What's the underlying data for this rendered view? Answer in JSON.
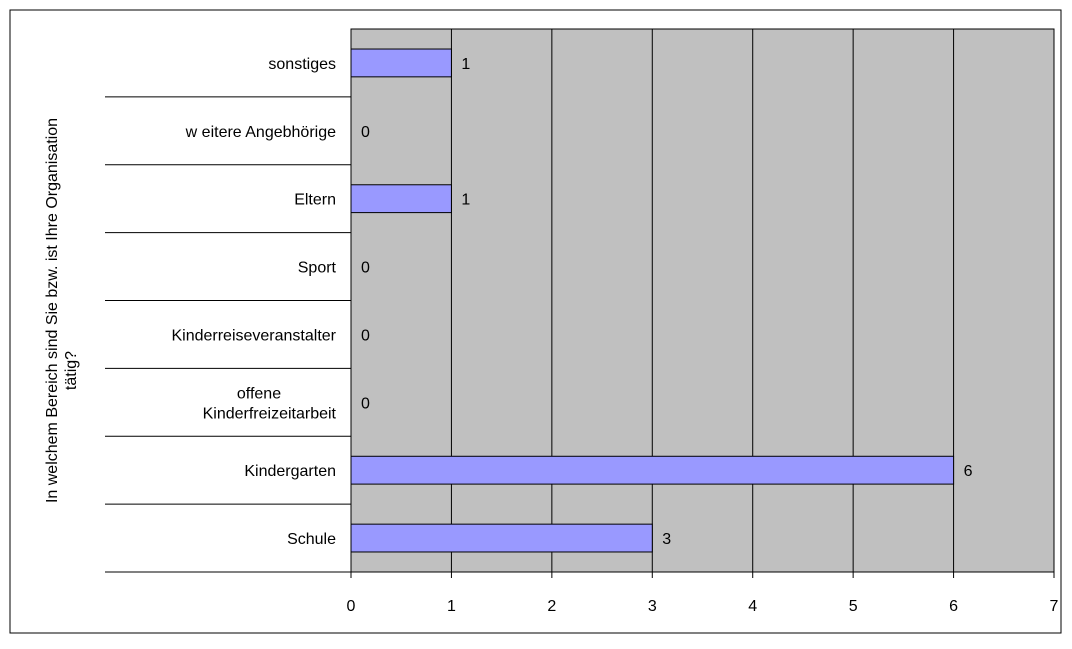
{
  "chart_data": {
    "type": "bar",
    "orientation": "horizontal",
    "ylabel": "In welchem Bereich sind Sie bzw. ist Ihre Organisation tätig?",
    "ylabel_lines": [
      "In welchem Bereich sind Sie bzw. ist Ihre Organisation",
      "tätig?"
    ],
    "categories": [
      "Schule",
      "Kindergarten",
      "offene Kinderfreizeitarbeit",
      "Kinderreiseveranstalter",
      "Sport",
      "Eltern",
      "w eitere Angebhörige",
      "sonstiges"
    ],
    "category_lines": [
      [
        "Schule"
      ],
      [
        "Kindergarten"
      ],
      [
        "offene",
        "Kinderfreizeitarbeit"
      ],
      [
        "Kinderreiseveranstalter"
      ],
      [
        "Sport"
      ],
      [
        "Eltern"
      ],
      [
        "w eitere Angebhörige"
      ],
      [
        "sonstiges"
      ]
    ],
    "values": [
      3,
      6,
      0,
      0,
      0,
      1,
      0,
      1
    ],
    "data_labels": [
      "3",
      "6",
      "0",
      "0",
      "0",
      "1",
      "0",
      "1"
    ],
    "xlim": [
      0,
      7
    ],
    "xticks": [
      0,
      1,
      2,
      3,
      4,
      5,
      6,
      7
    ],
    "xtick_labels": [
      "0",
      "1",
      "2",
      "3",
      "4",
      "5",
      "6",
      "7"
    ],
    "grid": true,
    "legend": "none",
    "colors": {
      "bar_fill": "#9999ff",
      "bar_stroke": "#000000",
      "plot_background": "#c0c0c0",
      "grid": "#000000",
      "text": "#000000",
      "frame": "#000000"
    }
  }
}
